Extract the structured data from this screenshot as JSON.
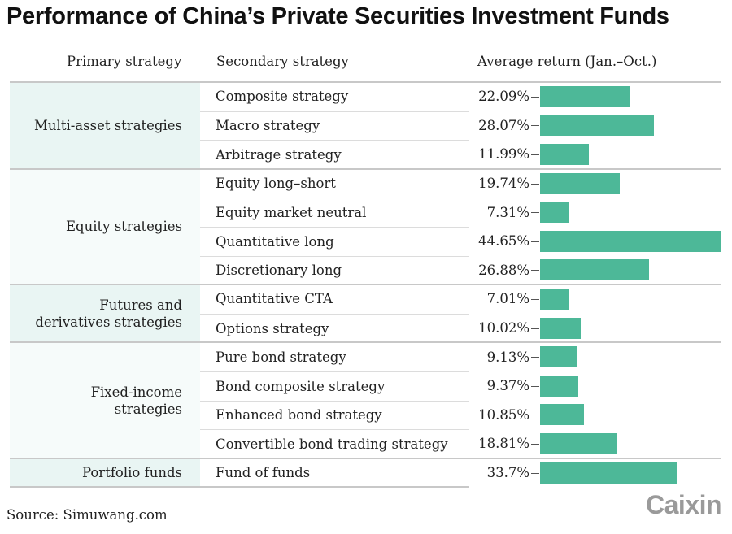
{
  "title": "Performance of China’s Private Securities Investment Funds",
  "headers": {
    "primary": "Primary strategy",
    "secondary": "Secondary strategy",
    "value": "Average return (Jan.–Oct.)"
  },
  "groups": [
    {
      "label": "Multi-asset strategies",
      "rows": 3
    },
    {
      "label": "Equity strategies",
      "rows": 4
    },
    {
      "label": "Futures and derivatives strategies",
      "rows": 2
    },
    {
      "label": "Fixed-income strategies",
      "rows": 4
    },
    {
      "label": "Portfolio funds",
      "rows": 1
    }
  ],
  "chart_data": {
    "type": "bar",
    "orientation": "horizontal",
    "categories": [
      "Composite strategy",
      "Macro strategy",
      "Arbitrage strategy",
      "Equity long–short",
      "Equity market neutral",
      "Quantitative long",
      "Discretionary long",
      "Quantitative CTA",
      "Options strategy",
      "Pure bond strategy",
      "Bond composite strategy",
      "Enhanced bond strategy",
      "Convertible bond trading strategy",
      "Fund of funds"
    ],
    "values": [
      22.09,
      28.07,
      11.99,
      19.74,
      7.31,
      44.65,
      26.88,
      7.01,
      10.02,
      9.13,
      9.37,
      10.85,
      18.81,
      33.7
    ],
    "labels": [
      "22.09%",
      "28.07%",
      "11.99%",
      "19.74%",
      "7.31%",
      "44.65%",
      "26.88%",
      "7.01%",
      "10.02%",
      "9.13%",
      "9.37%",
      "10.85%",
      "18.81%",
      "33.7%"
    ],
    "xlim": [
      0,
      44.65
    ],
    "color": "#4db898"
  },
  "source": "Source: Simuwang.com",
  "logo": "Caixin"
}
